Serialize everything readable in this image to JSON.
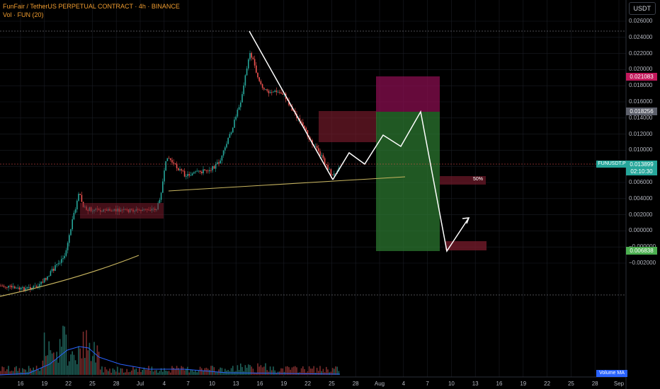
{
  "header": {
    "symbol_title": "FunFair / TetherUS PERPETUAL CONTRACT · 4h · BINANCE",
    "volume_indicator": "Vol · FUN (20)",
    "currency": "USDT"
  },
  "price_axis": {
    "ticks": [
      "0.026000",
      "0.024000",
      "0.022000",
      "0.020000",
      "0.018000",
      "0.016000",
      "0.014000",
      "0.012000",
      "0.010000",
      "0.008000",
      "0.006000",
      "0.004000",
      "0.002000",
      "0.000000",
      "−0.000000",
      "−0.002000"
    ]
  },
  "badges": {
    "stop_loss": "0.021083",
    "entry": "0.018256",
    "last_price": "0.013899",
    "countdown": "02:10:30",
    "take_profit": "0.006838"
  },
  "tags": {
    "symbol": "FUNUSDT.P",
    "volume_ma": "Volume MA",
    "fifty_pct": "50%"
  },
  "time_axis": {
    "ticks": [
      "16",
      "19",
      "22",
      "25",
      "28",
      "Jul",
      "4",
      "7",
      "10",
      "13",
      "16",
      "19",
      "22",
      "25",
      "28",
      "Aug",
      "4",
      "7",
      "10",
      "13",
      "16",
      "19",
      "22",
      "25",
      "28",
      "Sep"
    ]
  },
  "colors": {
    "up": "#26a69a",
    "down": "#ef5350",
    "profit": "#2e7d32",
    "loss": "#880e4f",
    "trend": "#c8b560"
  }
}
